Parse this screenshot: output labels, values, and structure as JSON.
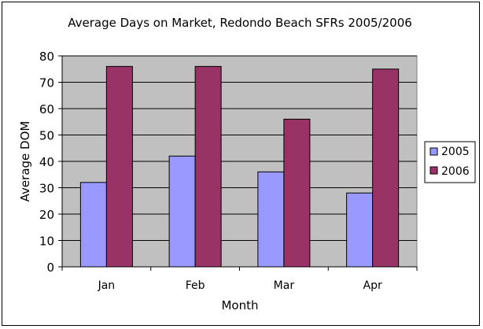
{
  "chart_data": {
    "type": "bar",
    "title": "Average Days on Market, Redondo Beach SFRs 2005/2006",
    "xlabel": "Month",
    "ylabel": "Average DOM",
    "categories": [
      "Jan",
      "Feb",
      "Mar",
      "Apr"
    ],
    "series": [
      {
        "name": "2005",
        "values": [
          32,
          42,
          36,
          28
        ],
        "color": "#9999ff"
      },
      {
        "name": "2006",
        "values": [
          76,
          76,
          56,
          75
        ],
        "color": "#993366"
      }
    ],
    "ylim": [
      0,
      80
    ],
    "yticks": [
      0,
      10,
      20,
      30,
      40,
      50,
      60,
      70,
      80
    ],
    "grid": true,
    "plot_background": "#c0c0c0",
    "legend_position": "right"
  }
}
